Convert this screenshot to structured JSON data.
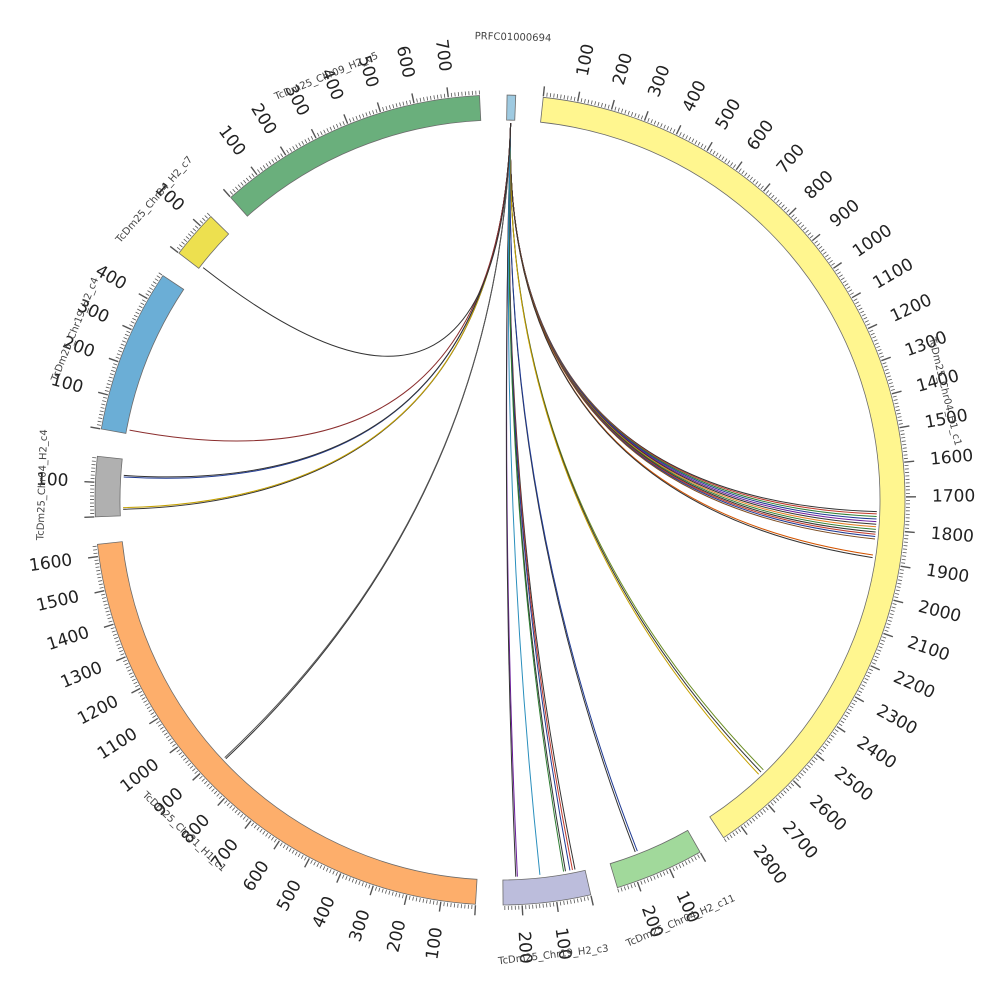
{
  "segments": [
    {
      "name": "PRFC01000694",
      "length": 25,
      "tick_step": 0,
      "color": "#9ecae1"
    },
    {
      "name": "TcDm25_Chr04_H1_c1",
      "length": 2860,
      "tick_step": 100,
      "color": "#fff68f"
    },
    {
      "name": "TcDm25_Chr04_H2_c11",
      "length": 260,
      "tick_step": 100,
      "color": "#a1d99b"
    },
    {
      "name": "TcDm25_Chr19_H2_c3",
      "length": 255,
      "tick_step": 100,
      "color": "#bcbddc"
    },
    {
      "name": "TcDm25_Chr31_H1_c1",
      "length": 1635,
      "tick_step": 100,
      "color": "#fdae6b"
    },
    {
      "name": "TcDm25_Chr04_H2_c4",
      "length": 175,
      "tick_step": 100,
      "color": "#b0b0b0"
    },
    {
      "name": "TcDm25_Chr19_H2_c4",
      "length": 480,
      "tick_step": 100,
      "color": "#6baed6"
    },
    {
      "name": "TcDm25_Chr04_H2_c7",
      "length": 140,
      "tick_step": 100,
      "color": "#ede04f"
    },
    {
      "name": "TcDm25_Chr09_H2_c5",
      "length": 790,
      "tick_step": 100,
      "color": "#6aaf7c"
    }
  ],
  "links": [
    {
      "from": 0,
      "to": [
        1,
        1745
      ],
      "color": "#333333"
    },
    {
      "from": 0,
      "to": [
        1,
        1752
      ],
      "color": "#c0392b"
    },
    {
      "from": 0,
      "to": [
        1,
        1760
      ],
      "color": "#2e7d32"
    },
    {
      "from": 0,
      "to": [
        1,
        1768
      ],
      "color": "#1f3a93"
    },
    {
      "from": 0,
      "to": [
        1,
        1776
      ],
      "color": "#6a1b9a"
    },
    {
      "from": 0,
      "to": [
        1,
        1784
      ],
      "color": "#333333"
    },
    {
      "from": 0,
      "to": [
        1,
        1792
      ],
      "color": "#e67e22"
    },
    {
      "from": 0,
      "to": [
        1,
        1800
      ],
      "color": "#2e7d32"
    },
    {
      "from": 0,
      "to": [
        1,
        1808
      ],
      "color": "#333333"
    },
    {
      "from": 0,
      "to": [
        1,
        1815
      ],
      "color": "#c0392b"
    },
    {
      "from": 0,
      "to": [
        1,
        1822
      ],
      "color": "#1f3a93"
    },
    {
      "from": 0,
      "to": [
        1,
        1830
      ],
      "color": "#7a4a1e"
    },
    {
      "from": 0,
      "to": [
        1,
        1880
      ],
      "color": "#d35400"
    },
    {
      "from": 0,
      "to": [
        1,
        1888
      ],
      "color": "#333333"
    },
    {
      "from": 0,
      "to": [
        1,
        2640
      ],
      "color": "#6b8e23"
    },
    {
      "from": 0,
      "to": [
        1,
        2650
      ],
      "color": "#333333"
    },
    {
      "from": 0,
      "to": [
        1,
        2660
      ],
      "color": "#c5a100"
    },
    {
      "from": 0,
      "to": [
        2,
        175
      ],
      "color": "#333333"
    },
    {
      "from": 0,
      "to": [
        2,
        168
      ],
      "color": "#1f3a93"
    },
    {
      "from": 0,
      "to": [
        3,
        30
      ],
      "color": "#333333"
    },
    {
      "from": 0,
      "to": [
        3,
        38
      ],
      "color": "#c0392b"
    },
    {
      "from": 0,
      "to": [
        3,
        46
      ],
      "color": "#1f3a93"
    },
    {
      "from": 0,
      "to": [
        3,
        60
      ],
      "color": "#333333"
    },
    {
      "from": 0,
      "to": [
        3,
        66
      ],
      "color": "#2e7d32"
    },
    {
      "from": 0,
      "to": [
        3,
        210
      ],
      "color": "#6a1b9a"
    },
    {
      "from": 0,
      "to": [
        3,
        215
      ],
      "color": "#333333"
    },
    {
      "from": 0,
      "to": [
        3,
        140
      ],
      "color": "#2a8fbd"
    },
    {
      "from": 0,
      "to": [
        4,
        880
      ],
      "color": "#333333"
    },
    {
      "from": 0,
      "to": [
        4,
        885
      ],
      "color": "#555555"
    },
    {
      "from": 0,
      "to": [
        5,
        20
      ],
      "color": "#333333"
    },
    {
      "from": 0,
      "to": [
        5,
        25
      ],
      "color": "#c5a100"
    },
    {
      "from": 0,
      "to": [
        5,
        120
      ],
      "color": "#1f3a93"
    },
    {
      "from": 0,
      "to": [
        5,
        125
      ],
      "color": "#333333"
    },
    {
      "from": 0,
      "to": [
        6,
        12
      ],
      "color": "#8b2e2e"
    },
    {
      "from": 0,
      "to": [
        7,
        10
      ],
      "color": "#333333"
    }
  ]
}
